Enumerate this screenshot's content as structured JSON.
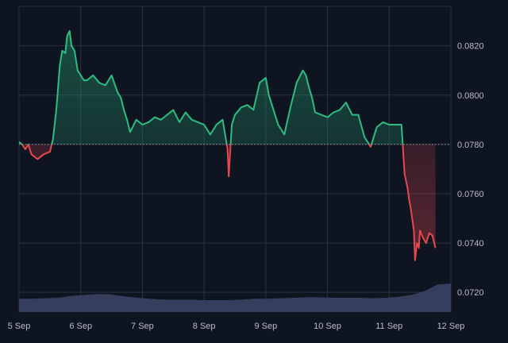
{
  "colors": {
    "background": "#0f1421",
    "grid": "#2a3040",
    "axis_text": "#b8bcc6",
    "up_line": "#2dbd80",
    "down_line": "#e5484d",
    "baseline": "#9aa0aa",
    "volume": "#3a4263"
  },
  "chart_data": {
    "type": "area",
    "baseline_value": 0.078,
    "x_ticks": [
      "5 Sep",
      "6 Sep",
      "7 Sep",
      "8 Sep",
      "9 Sep",
      "10 Sep",
      "11 Sep",
      "12 Sep"
    ],
    "y_ticks": [
      "0.0820",
      "0.0800",
      "0.0780",
      "0.0760",
      "0.0740",
      "0.0720"
    ],
    "ylim": [
      0.0712,
      0.0836
    ],
    "xlim": [
      0,
      7
    ],
    "grid": true,
    "series": [
      {
        "values_x": [
          0,
          0.05,
          0.1,
          0.15,
          0.2,
          0.3,
          0.4,
          0.5,
          0.55,
          0.6,
          0.62,
          0.66,
          0.7,
          0.75,
          0.78,
          0.82,
          0.85,
          0.9,
          0.95,
          1.0,
          1.05,
          1.1,
          1.2,
          1.3,
          1.4,
          1.5,
          1.6,
          1.65,
          1.7,
          1.75,
          1.8,
          1.9,
          2.0,
          2.1,
          2.2,
          2.3,
          2.4,
          2.5,
          2.6,
          2.7,
          2.8,
          2.9,
          3.0,
          3.1,
          3.2,
          3.3,
          3.38,
          3.4,
          3.42,
          3.45,
          3.5,
          3.6,
          3.7,
          3.8,
          3.9,
          4.0,
          4.05,
          4.1,
          4.2,
          4.3,
          4.4,
          4.5,
          4.6,
          4.65,
          4.7,
          4.75,
          4.8,
          4.9,
          5.0,
          5.1,
          5.2,
          5.3,
          5.4,
          5.5,
          5.6,
          5.7,
          5.8,
          5.9,
          6.0,
          6.1,
          6.2,
          6.25,
          6.3,
          6.32,
          6.35,
          6.4,
          6.42,
          6.45,
          6.48,
          6.5,
          6.55,
          6.6,
          6.65,
          6.7,
          6.75
        ],
        "values_y": [
          0.0781,
          0.078,
          0.0778,
          0.078,
          0.0776,
          0.0774,
          0.0776,
          0.0777,
          0.0782,
          0.0793,
          0.0799,
          0.0812,
          0.0818,
          0.0817,
          0.0824,
          0.0826,
          0.082,
          0.0818,
          0.081,
          0.0808,
          0.0806,
          0.0806,
          0.0808,
          0.0805,
          0.0804,
          0.0808,
          0.0801,
          0.0799,
          0.0794,
          0.079,
          0.0785,
          0.079,
          0.0788,
          0.0789,
          0.0791,
          0.079,
          0.0792,
          0.0794,
          0.0789,
          0.0793,
          0.079,
          0.0789,
          0.0788,
          0.0784,
          0.0788,
          0.079,
          0.0778,
          0.0767,
          0.0776,
          0.0788,
          0.0792,
          0.0795,
          0.0796,
          0.0794,
          0.0805,
          0.0807,
          0.08,
          0.0796,
          0.0788,
          0.0784,
          0.0795,
          0.0805,
          0.081,
          0.0808,
          0.0803,
          0.0799,
          0.0793,
          0.0792,
          0.0791,
          0.0793,
          0.0794,
          0.0797,
          0.0792,
          0.0792,
          0.0783,
          0.0779,
          0.0787,
          0.0789,
          0.0788,
          0.0788,
          0.0788,
          0.0768,
          0.0762,
          0.0758,
          0.0754,
          0.0745,
          0.0733,
          0.074,
          0.0738,
          0.0745,
          0.0742,
          0.074,
          0.0744,
          0.0743,
          0.0738
        ]
      }
    ],
    "volume_level": [
      0.28,
      0.28,
      0.29,
      0.3,
      0.34,
      0.36,
      0.38,
      0.37,
      0.33,
      0.3,
      0.28,
      0.26,
      0.26,
      0.26,
      0.25,
      0.25,
      0.25,
      0.26,
      0.28,
      0.28,
      0.29,
      0.3,
      0.31,
      0.31,
      0.3,
      0.3,
      0.3,
      0.29,
      0.3,
      0.32,
      0.36,
      0.44,
      0.58,
      0.6
    ]
  }
}
